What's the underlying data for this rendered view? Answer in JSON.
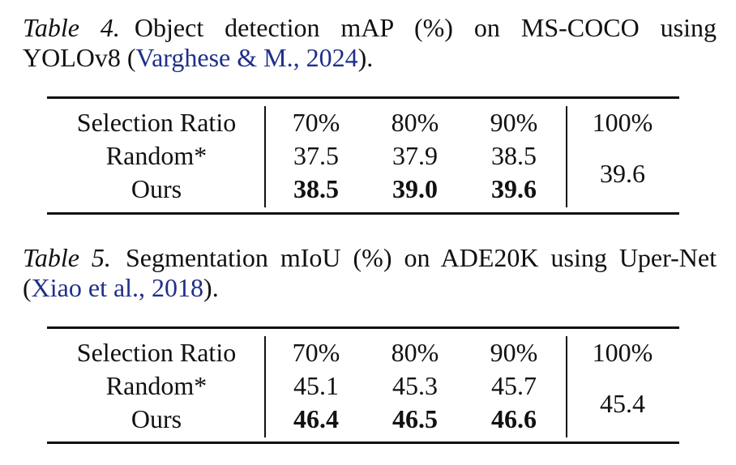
{
  "table4": {
    "caption_label": "Table 4.",
    "caption_text": "Object detection mAP (%) on MS-COCO using YOLOv8 (",
    "caption_cite": "Varghese & M., 2024",
    "caption_end": ").",
    "header": [
      "Selection Ratio",
      "70%",
      "80%",
      "90%",
      "100%"
    ],
    "rows": [
      {
        "method": "Random*",
        "values": [
          "37.5",
          "37.9",
          "38.5"
        ]
      },
      {
        "method": "Ours",
        "values": [
          "38.5",
          "39.0",
          "39.6"
        ]
      }
    ],
    "full_value": "39.6"
  },
  "table5": {
    "caption_label": "Table 5.",
    "caption_text": "Segmentation mIoU (%) on ADE20K using Uper-Net (",
    "caption_cite": "Xiao et al., 2018",
    "caption_end": ").",
    "header": [
      "Selection Ratio",
      "70%",
      "80%",
      "90%",
      "100%"
    ],
    "rows": [
      {
        "method": "Random*",
        "values": [
          "45.1",
          "45.3",
          "45.7"
        ]
      },
      {
        "method": "Ours",
        "values": [
          "46.4",
          "46.5",
          "46.6"
        ]
      }
    ],
    "full_value": "45.4"
  },
  "colors": {
    "text": "#111111",
    "citation": "#1f2f8a"
  }
}
